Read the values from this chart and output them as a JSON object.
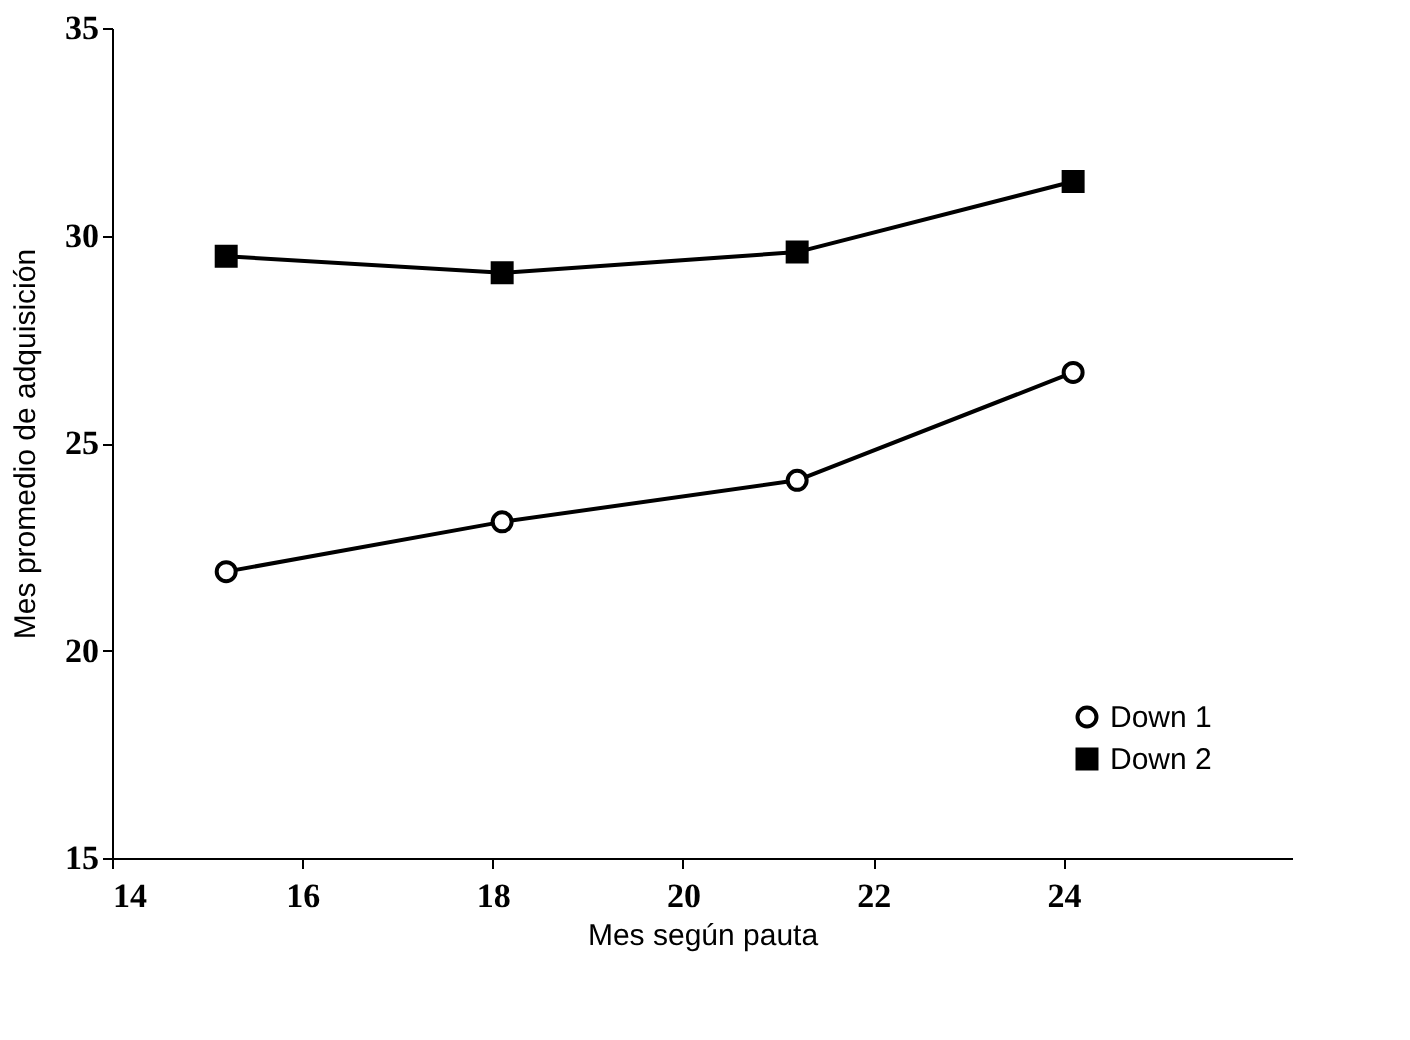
{
  "chart_data": {
    "type": "line",
    "xlabel": "Mes según pauta",
    "ylabel": "Mes promedio de adquisición",
    "xlim": [
      14,
      26.4
    ],
    "xticks": [
      14,
      16,
      18,
      20,
      22,
      24
    ],
    "ylim": [
      15,
      35
    ],
    "yticks": [
      15,
      20,
      25,
      30,
      35
    ],
    "grid": false,
    "legend": "bottom right",
    "series": [
      {
        "name": "Down 1",
        "color": "#000000",
        "marker": "circle",
        "x": [
          15.2,
          18.1,
          21.2,
          24.1
        ],
        "values": [
          21.9,
          23.1,
          24.1,
          26.7
        ]
      },
      {
        "name": "Down 2",
        "color": "#000000",
        "marker": "square",
        "x": [
          15.2,
          18.1,
          21.2,
          24.1
        ],
        "values": [
          29.5,
          29.1,
          29.6,
          31.3
        ]
      }
    ]
  }
}
